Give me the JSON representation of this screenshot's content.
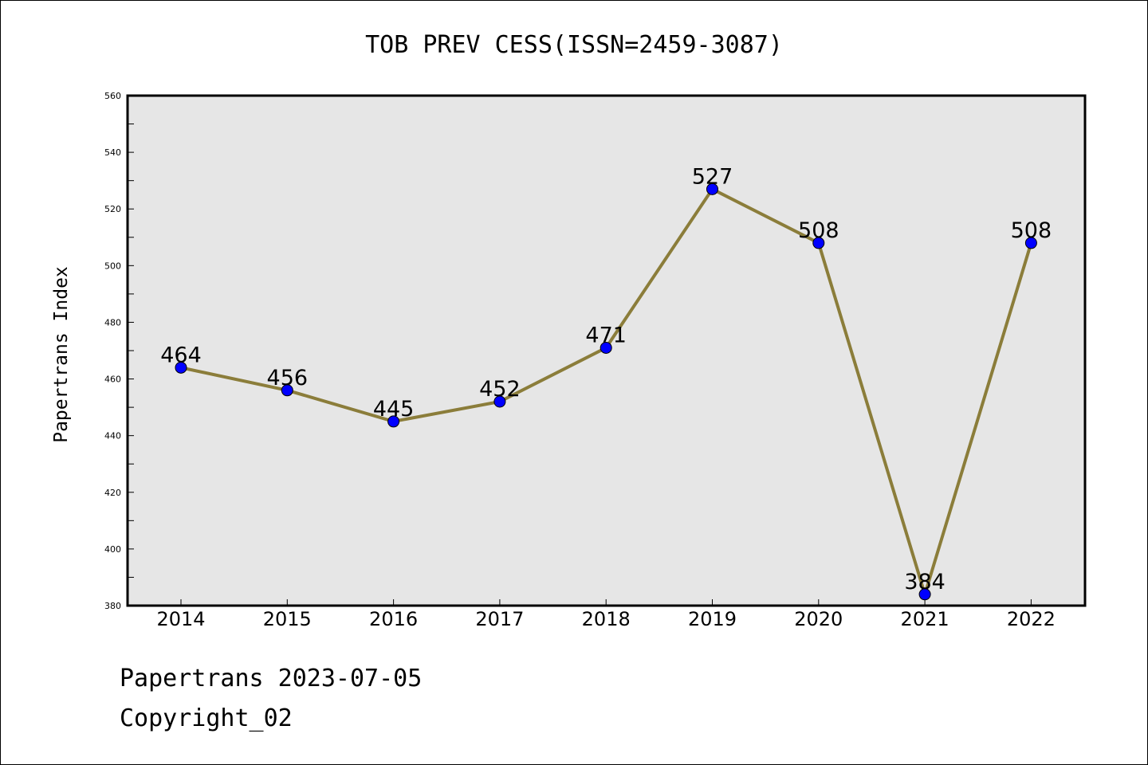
{
  "chart_data": {
    "type": "line",
    "title": "TOB PREV CESS(ISSN=2459-3087)",
    "xlabel": "",
    "ylabel": "Papertrans Index",
    "categories": [
      "2014",
      "2015",
      "2016",
      "2017",
      "2018",
      "2019",
      "2020",
      "2021",
      "2022"
    ],
    "series": [
      {
        "values": [
          464,
          456,
          445,
          452,
          471,
          527,
          508,
          384,
          508
        ],
        "color": "#8B7D3A",
        "marker_color": "#0000FF"
      }
    ],
    "data_labels": [
      "464",
      "456",
      "445",
      "452",
      "471",
      "527",
      "508",
      "384",
      "508"
    ],
    "ylim": [
      380,
      560
    ],
    "yticks": [
      "380",
      "400",
      "420",
      "440",
      "460",
      "480",
      "500",
      "520",
      "540",
      "560"
    ],
    "grid": false,
    "plot_background": "#E6E6E6"
  },
  "footer": {
    "date_line": "Papertrans 2023-07-05",
    "copyright_line": "Copyright_02"
  }
}
